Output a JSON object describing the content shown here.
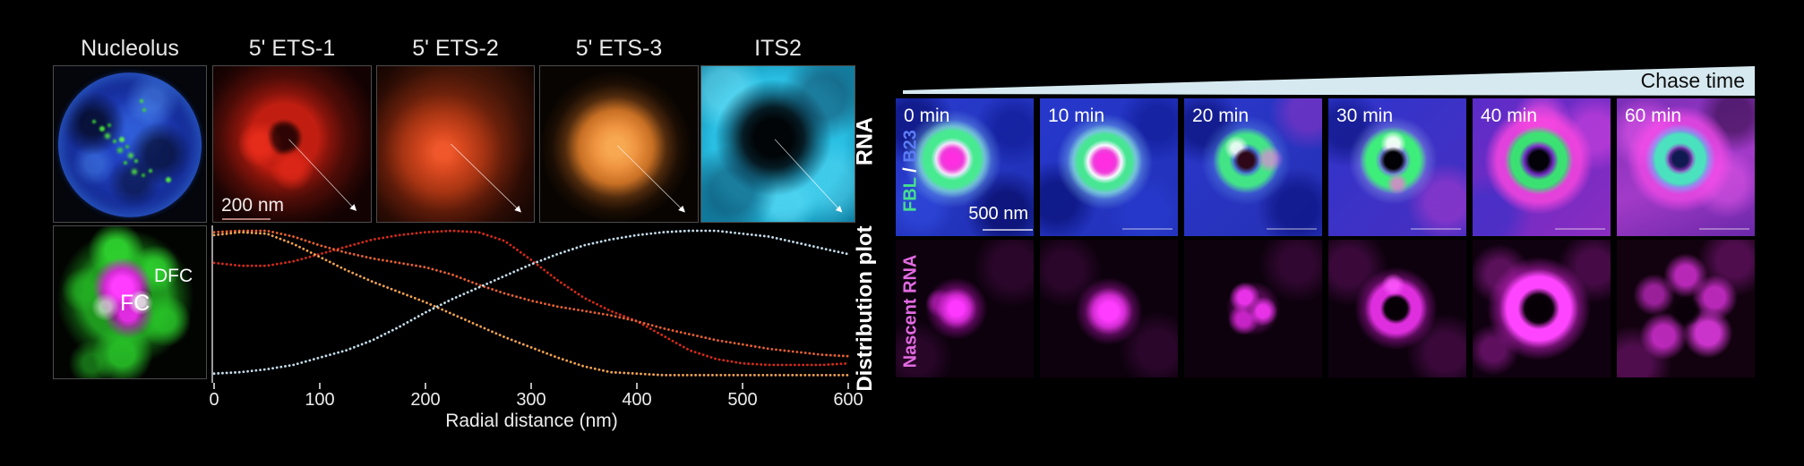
{
  "left": {
    "panel_titles": [
      "Nucleolus",
      "5' ETS-1",
      "5' ETS-2",
      "5' ETS-3",
      "ITS2"
    ],
    "row_labels": {
      "top": "RNA",
      "bottom": "Distribution plot"
    },
    "scale_bar_label": "200 nm",
    "inset": {
      "dfc": "DFC",
      "fc": "FC"
    }
  },
  "right": {
    "chase_label": "Chase time",
    "time_labels": [
      "0 min",
      "10 min",
      "20 min",
      "30 min",
      "40 min",
      "60 min"
    ],
    "row1_label": {
      "fbl": "FBL",
      "sep": " / ",
      "b23": "B23"
    },
    "row2_label": "Nascent RNA",
    "scale_bar_label": "500 nm",
    "colors": {
      "fbl": "#45e08c",
      "b23": "#5b7cf5",
      "nascent": "#e26ae2",
      "wedge": "#d6e9f0"
    }
  },
  "chart_data": {
    "type": "line",
    "style": "dotted",
    "title": "",
    "xlabel": "Radial distance (nm)",
    "ylabel": "Distribution plot",
    "xlim": [
      0,
      600
    ],
    "ylim": [
      0,
      1
    ],
    "xticks": [
      0,
      100,
      200,
      300,
      400,
      500,
      600
    ],
    "grid": false,
    "legend": "none",
    "x": [
      0,
      25,
      50,
      75,
      100,
      125,
      150,
      175,
      200,
      225,
      250,
      275,
      300,
      325,
      350,
      375,
      400,
      425,
      450,
      475,
      500,
      525,
      550,
      575,
      600
    ],
    "series": [
      {
        "name": "5' ETS-1",
        "color": "#d62a18",
        "values": [
          0.78,
          0.76,
          0.76,
          0.79,
          0.84,
          0.89,
          0.94,
          0.97,
          0.99,
          1.0,
          0.99,
          0.93,
          0.8,
          0.66,
          0.54,
          0.45,
          0.38,
          0.28,
          0.18,
          0.12,
          0.09,
          0.08,
          0.08,
          0.08,
          0.09
        ]
      },
      {
        "name": "5' ETS-2",
        "color": "#e8602e",
        "values": [
          0.99,
          1.0,
          1.0,
          0.96,
          0.9,
          0.85,
          0.81,
          0.78,
          0.75,
          0.7,
          0.63,
          0.57,
          0.52,
          0.48,
          0.45,
          0.42,
          0.38,
          0.33,
          0.29,
          0.25,
          0.22,
          0.19,
          0.17,
          0.15,
          0.14
        ]
      },
      {
        "name": "5' ETS-3",
        "color": "#f2a24e",
        "values": [
          0.97,
          0.99,
          0.98,
          0.91,
          0.82,
          0.73,
          0.65,
          0.58,
          0.51,
          0.43,
          0.35,
          0.27,
          0.2,
          0.13,
          0.07,
          0.03,
          0.02,
          0.01,
          0.01,
          0.01,
          0.01,
          0.01,
          0.01,
          0.01,
          0.01
        ]
      },
      {
        "name": "ITS2",
        "color": "#c3dcea",
        "values": [
          0.02,
          0.03,
          0.05,
          0.08,
          0.13,
          0.18,
          0.25,
          0.34,
          0.44,
          0.53,
          0.61,
          0.69,
          0.77,
          0.84,
          0.9,
          0.94,
          0.97,
          0.99,
          1.0,
          1.0,
          0.98,
          0.96,
          0.92,
          0.88,
          0.84
        ]
      }
    ]
  }
}
